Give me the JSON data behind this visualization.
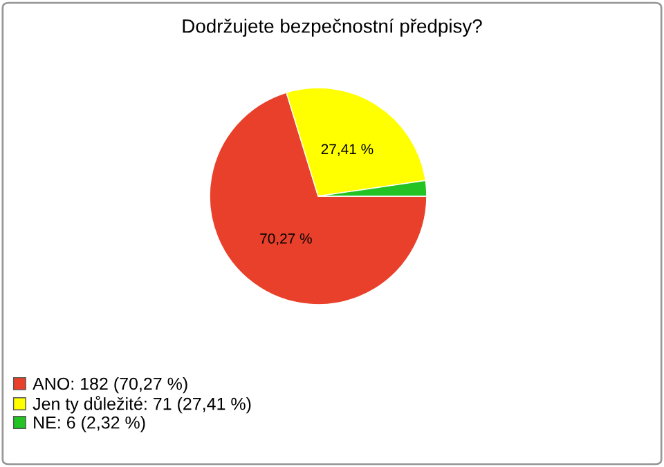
{
  "chart_data": {
    "type": "pie",
    "title": "Dodržujete bezpečnostní předpisy?",
    "categories": [
      "ANO: 182 (70,27 %)",
      "Jen ty důležité: 71 (27,41 %)",
      "NE: 6 (2,32 %)"
    ],
    "values": [
      70.27,
      27.41,
      2.32
    ],
    "value_labels": [
      "70,27 %",
      "27,41 %",
      null
    ],
    "colors": [
      "#e8402a",
      "#ffff00",
      "#22c322"
    ],
    "legend": "bottom left"
  }
}
